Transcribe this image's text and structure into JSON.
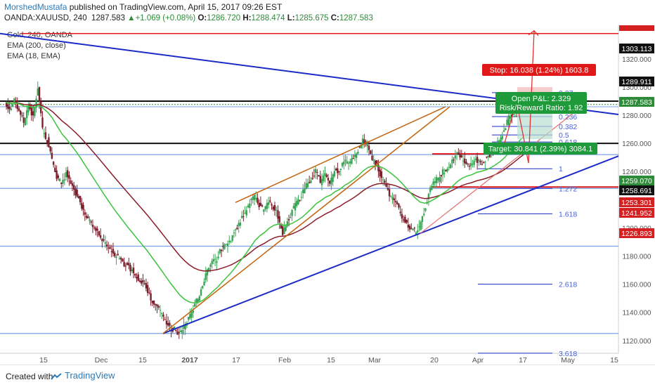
{
  "header": {
    "author": "MorshedMustafa",
    "published": " published on TradingView.com, April 15, 2017 09:26 EST",
    "symbol": "OANDA:XAUUSD, 240",
    "last": "1287.583",
    "change": "+1.069 (+0.08%)",
    "o": "1286.720",
    "h": "1288.474",
    "l": "1285.675",
    "c": "1287.583"
  },
  "indicators": [
    "Gold, 240, OANDA",
    "EMA (200, close)",
    "EMA (18, EMA)"
  ],
  "footer": {
    "created_with": "Created with",
    "brand": "TradingView"
  },
  "colors": {
    "up_candle": "#3aa655",
    "down_candle": "#7a1f2b",
    "ema200": "#8b1e2a",
    "ema18": "#39c43a",
    "trend_blue": "#1c2bc8",
    "wedge_orange": "#c4640e",
    "level_blue": "#7aa2e6",
    "resist_red": "#e01818",
    "price_green": "#2e8b3a"
  },
  "chart_data": {
    "type": "candlestick",
    "y_ticks": [
      1120,
      1140,
      1160,
      1180,
      1200,
      1220,
      1240,
      1260,
      1280,
      1300,
      1320
    ],
    "x_ticks": [
      "15",
      "Dec",
      "15",
      "2017",
      "17",
      "Feb",
      "15",
      "Mar",
      "20",
      "Apr",
      "17",
      "May",
      "15"
    ],
    "price_labels": [
      {
        "value": "1303.113",
        "style": "black"
      },
      {
        "value": "1289.911",
        "style": "black"
      },
      {
        "value": "1287.583",
        "style": "green"
      },
      {
        "value": "1259.070",
        "style": "green"
      },
      {
        "value": "1258.691",
        "style": "black"
      },
      {
        "value": "1253.301",
        "style": "red"
      },
      {
        "value": "1241.952",
        "style": "red"
      },
      {
        "value": "1226.893",
        "style": "red"
      }
    ],
    "horizontal_levels": [
      1338,
      1290,
      1286,
      1260,
      1252,
      1228,
      1187,
      1125
    ],
    "fib_levels": [
      {
        "label": "0.27",
        "price": 1296
      },
      {
        "label": "0.236",
        "price": 1279
      },
      {
        "label": "0.382",
        "price": 1272
      },
      {
        "label": "0.5",
        "price": 1266
      },
      {
        "label": "0.618",
        "price": 1261
      },
      {
        "label": "1",
        "price": 1242
      },
      {
        "label": "1.272",
        "price": 1228
      },
      {
        "label": "1.618",
        "price": 1210
      },
      {
        "label": "2.618",
        "price": 1160
      },
      {
        "label": "3.618",
        "price": 1111
      }
    ],
    "annotations": {
      "stop": "Stop: 16.038 (1.24%) 1603.8",
      "pnl": "Open P&L: 2.329",
      "rr": "Risk/Reward Ratio: 1.92",
      "target": "Target: 30.841 (2.39%) 3084.1"
    },
    "close_series": [
      1289,
      1285,
      1290,
      1283,
      1275,
      1287,
      1278,
      1300,
      1270,
      1262,
      1250,
      1235,
      1232,
      1238,
      1230,
      1225,
      1218,
      1210,
      1205,
      1200,
      1195,
      1190,
      1186,
      1182,
      1180,
      1176,
      1172,
      1170,
      1165,
      1162,
      1158,
      1150,
      1145,
      1140,
      1135,
      1130,
      1128,
      1125,
      1130,
      1135,
      1142,
      1150,
      1160,
      1170,
      1175,
      1178,
      1185,
      1188,
      1192,
      1200,
      1205,
      1210,
      1218,
      1222,
      1216,
      1212,
      1220,
      1215,
      1208,
      1196,
      1204,
      1212,
      1218,
      1222,
      1230,
      1235,
      1240,
      1233,
      1238,
      1232,
      1242,
      1238,
      1248,
      1245,
      1250,
      1256,
      1262,
      1258,
      1250,
      1245,
      1235,
      1228,
      1222,
      1218,
      1210,
      1205,
      1200,
      1198,
      1200,
      1212,
      1225,
      1232,
      1236,
      1240,
      1242,
      1248,
      1254,
      1250,
      1246,
      1244,
      1250,
      1245,
      1248,
      1252,
      1258,
      1262,
      1270,
      1278,
      1282,
      1286,
      1287.6
    ]
  }
}
